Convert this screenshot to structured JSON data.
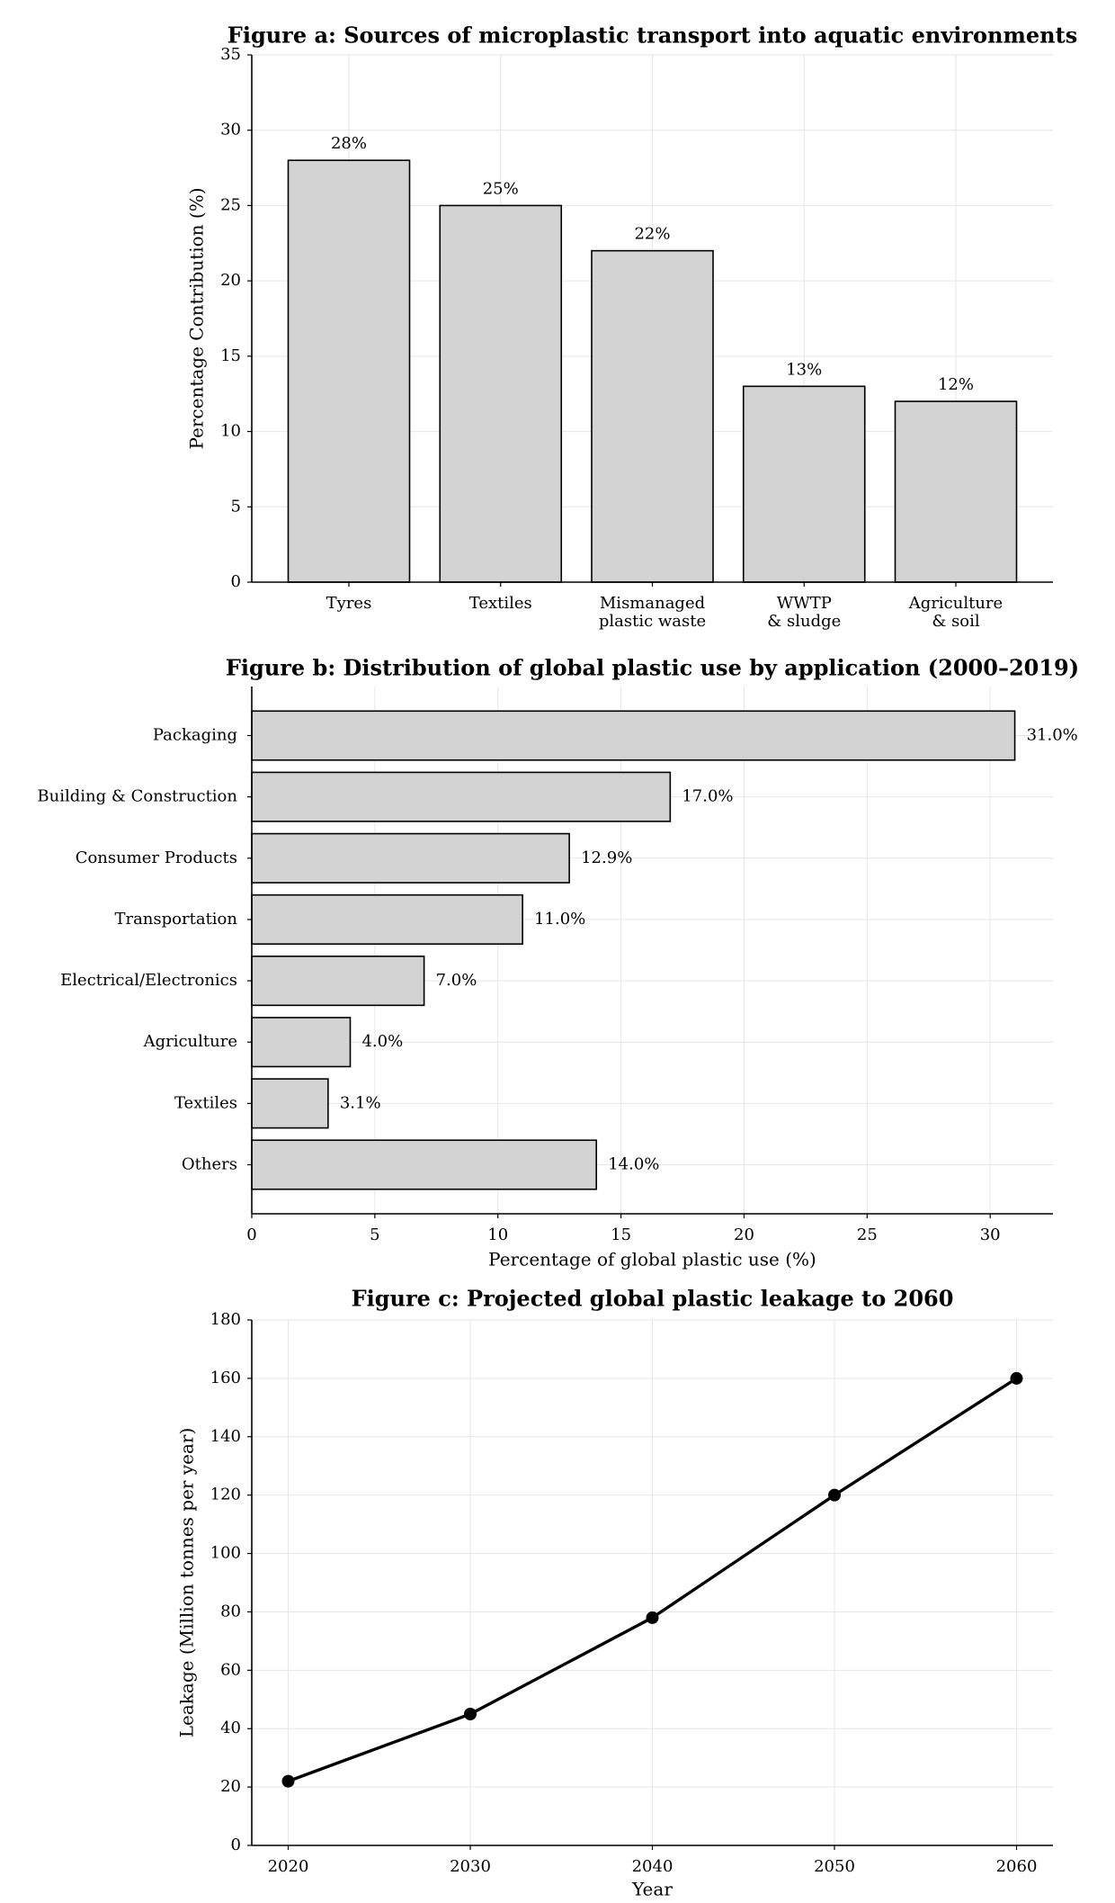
{
  "chart_data": [
    {
      "type": "bar",
      "title": "Figure a: Sources of microplastic transport into aquatic environments",
      "ylabel": "Percentage Contribution (%)",
      "categories": [
        "Tyres",
        "Textiles",
        "Mismanaged\nplastic waste",
        "WWTP\n& sludge",
        "Agriculture\n& soil"
      ],
      "values": [
        28,
        25,
        22,
        13,
        12
      ],
      "value_labels": [
        "28%",
        "25%",
        "22%",
        "13%",
        "12%"
      ],
      "color": "#d3d3d3",
      "edgecolor": "#000000",
      "ylim": [
        0,
        35
      ],
      "yticks": [
        0,
        5,
        10,
        15,
        20,
        25,
        30,
        35
      ],
      "grid": true
    },
    {
      "type": "barh",
      "title": "Figure b: Distribution of global plastic use by application (2000–2019)",
      "xlabel": "Percentage of global plastic use (%)",
      "categories": [
        "Packaging",
        "Building & Construction",
        "Consumer Products",
        "Transportation",
        "Electrical/Electronics",
        "Agriculture",
        "Textiles",
        "Others"
      ],
      "values": [
        31.0,
        17.0,
        12.9,
        11.0,
        7.0,
        4.0,
        3.1,
        14.0
      ],
      "value_labels": [
        "31.0%",
        "17.0%",
        "12.9%",
        "11.0%",
        "7.0%",
        "4.0%",
        "3.1%",
        "14.0%"
      ],
      "color": "#d3d3d3",
      "edgecolor": "#000000",
      "xlim": [
        0,
        32.55
      ],
      "xticks": [
        0,
        5,
        10,
        15,
        20,
        25,
        30
      ],
      "grid": true
    },
    {
      "type": "line",
      "title": "Figure c: Projected global plastic leakage to 2060",
      "xlabel": "Year",
      "ylabel": "Leakage (Million tonnes per year)",
      "x": [
        2020,
        2030,
        2040,
        2050,
        2060
      ],
      "values": [
        22,
        45,
        78,
        120,
        160
      ],
      "color": "#000000",
      "xlim": [
        2018,
        2062
      ],
      "xticks": [
        2020,
        2030,
        2040,
        2050,
        2060
      ],
      "ylim": [
        0,
        180
      ],
      "yticks": [
        0,
        20,
        40,
        60,
        80,
        100,
        120,
        140,
        160,
        180
      ],
      "grid": true
    }
  ]
}
